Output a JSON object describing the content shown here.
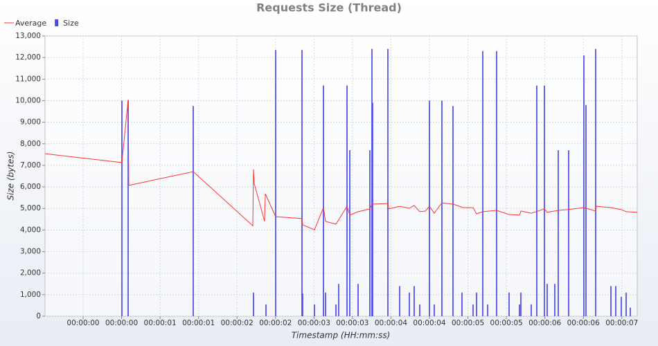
{
  "chart_data": {
    "type": "bar-line",
    "title": "Requests Size (Thread)",
    "x_label": "Timestamp (HH:mm:ss)",
    "y_label": "Size (bytes)",
    "grid": true,
    "legend": "top-left",
    "xlim": [
      -0.495,
      7.2
    ],
    "xticks": [
      {
        "value": 0,
        "label": "00:00:00"
      },
      {
        "value": 0.5,
        "label": "00:00:00"
      },
      {
        "value": 1,
        "label": "00:00:01"
      },
      {
        "value": 1.5,
        "label": "00:00:01"
      },
      {
        "value": 2,
        "label": "00:00:02"
      },
      {
        "value": 2.5,
        "label": "00:00:02"
      },
      {
        "value": 3,
        "label": "00:00:03"
      },
      {
        "value": 3.5,
        "label": "00:00:03"
      },
      {
        "value": 4,
        "label": "00:00:04"
      },
      {
        "value": 4.5,
        "label": "00:00:04"
      },
      {
        "value": 5,
        "label": "00:00:05"
      },
      {
        "value": 5.5,
        "label": "00:00:05"
      },
      {
        "value": 6,
        "label": "00:00:06"
      },
      {
        "value": 6.5,
        "label": "00:00:06"
      },
      {
        "value": 7,
        "label": "00:00:07"
      }
    ],
    "ylim": [
      0,
      13000
    ],
    "yticks": [
      0,
      {
        "value": 1000,
        "label": "1,000"
      },
      {
        "value": 2000,
        "label": "2,000"
      },
      {
        "value": 3000,
        "label": "3,000"
      },
      {
        "value": 4000,
        "label": "4,000"
      },
      {
        "value": 5000,
        "label": "5,000"
      },
      {
        "value": 6000,
        "label": "6,000"
      },
      {
        "value": 7000,
        "label": "7,000"
      },
      {
        "value": 8000,
        "label": "8,000"
      },
      {
        "value": 9000,
        "label": "9,000"
      },
      {
        "value": 10000,
        "label": "10,000"
      },
      {
        "value": 11000,
        "label": "11,000"
      },
      {
        "value": 12000,
        "label": "12,000"
      },
      {
        "value": 13000,
        "label": "13,000"
      }
    ],
    "series": [
      {
        "name": "Average",
        "kind": "line",
        "color": "#ff3333",
        "x": [
          -0.495,
          0.504,
          0.585,
          0.594,
          1.431,
          2.205,
          2.214,
          2.223,
          2.358,
          2.367,
          2.502,
          2.844,
          2.853,
          3.006,
          3.123,
          3.15,
          3.285,
          3.429,
          3.465,
          3.573,
          3.726,
          3.753,
          3.96,
          3.969,
          4.113,
          4.239,
          4.302,
          4.374,
          4.446,
          4.5,
          4.563,
          4.662,
          4.806,
          4.86,
          4.932,
          5.067,
          5.112,
          5.193,
          5.373,
          5.535,
          5.67,
          5.688,
          5.823,
          5.994,
          6.03,
          6.174,
          6.309,
          6.507,
          6.66,
          6.669,
          6.858,
          6.993,
          7.056,
          7.2
        ],
        "values": [
          7540,
          7130,
          10050,
          6070,
          6710,
          4200,
          6810,
          6160,
          4400,
          5680,
          4620,
          4530,
          4240,
          4010,
          5040,
          4400,
          4270,
          5100,
          4690,
          4850,
          4980,
          5200,
          5230,
          4980,
          5100,
          5010,
          5140,
          4850,
          4880,
          5100,
          4780,
          5260,
          5200,
          5140,
          5040,
          5040,
          4750,
          4850,
          4910,
          4720,
          4690,
          4880,
          4780,
          4980,
          4820,
          4910,
          4950,
          5040,
          4880,
          5100,
          5040,
          4950,
          4850,
          4820
        ]
      },
      {
        "name": "Size",
        "kind": "bar",
        "color": "#4a4ae6",
        "x": [
          0.504,
          0.585,
          1.431,
          2.214,
          2.376,
          2.502,
          2.844,
          2.853,
          3.006,
          3.123,
          3.15,
          3.285,
          3.321,
          3.429,
          3.465,
          3.573,
          3.726,
          3.753,
          3.762,
          3.96,
          4.113,
          4.239,
          4.302,
          4.374,
          4.5,
          4.563,
          4.662,
          4.806,
          4.923,
          5.067,
          5.112,
          5.193,
          5.256,
          5.373,
          5.535,
          5.67,
          5.688,
          5.823,
          5.895,
          5.994,
          6.03,
          6.129,
          6.174,
          6.309,
          6.507,
          6.534,
          6.66,
          6.858,
          6.921,
          6.993,
          7.056,
          7.11
        ],
        "values": [
          10000,
          10000,
          9750,
          1100,
          550,
          12350,
          12350,
          1050,
          550,
          10700,
          1100,
          550,
          1500,
          10700,
          7700,
          1500,
          7700,
          12400,
          9900,
          12400,
          1400,
          1100,
          1400,
          550,
          10000,
          550,
          10000,
          9750,
          1100,
          550,
          1100,
          12300,
          550,
          12300,
          1100,
          550,
          1100,
          550,
          10700,
          10700,
          1500,
          1500,
          7700,
          7700,
          12100,
          9800,
          12400,
          1400,
          1400,
          900,
          1100,
          400
        ]
      }
    ]
  }
}
